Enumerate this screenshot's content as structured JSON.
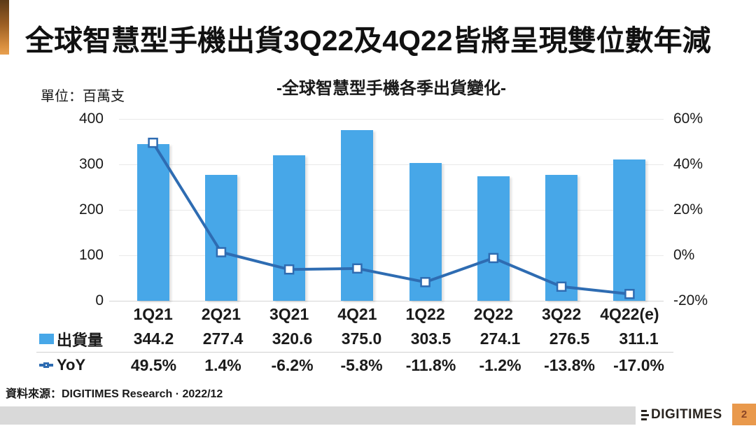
{
  "page": {
    "title": "全球智慧型手機出貨3Q22及4Q22皆將呈現雙位數年減",
    "source": "資料來源：DIGITIMES Research · 2022/12",
    "logo_text": "DIGITIMES",
    "page_number": "2"
  },
  "chart_data": {
    "type": "combo: bar (shipments, left axis) + line (YoY %, right axis)",
    "title": "-全球智慧型手機各季出貨變化-",
    "unit_label": "單位：百萬支",
    "categories": [
      "1Q21",
      "2Q21",
      "3Q21",
      "4Q21",
      "1Q22",
      "2Q22",
      "3Q22",
      "4Q22(e)"
    ],
    "series": [
      {
        "name": "出貨量",
        "chart": "bar",
        "axis": "left",
        "color": "#47A7E8",
        "values": [
          344.2,
          277.4,
          320.6,
          375.0,
          303.5,
          274.1,
          276.5,
          311.1
        ],
        "value_labels": [
          "344.2",
          "277.4",
          "320.6",
          "375.0",
          "303.5",
          "274.1",
          "276.5",
          "311.1"
        ]
      },
      {
        "name": "YoY",
        "chart": "line",
        "axis": "right",
        "color": "#2E6CB2",
        "marker": "open-square",
        "values": [
          49.5,
          1.4,
          -6.2,
          -5.8,
          -11.8,
          -1.2,
          -13.8,
          -17.0
        ],
        "value_labels": [
          "49.5%",
          "1.4%",
          "-6.2%",
          "-5.8%",
          "-11.8%",
          "-1.2%",
          "-13.8%",
          "-17.0%"
        ]
      }
    ],
    "left_axis": {
      "min": 0,
      "max": 400,
      "ticks": [
        "0",
        "100",
        "200",
        "300",
        "400"
      ]
    },
    "right_axis": {
      "min": -20,
      "max": 60,
      "ticks": [
        "-20%",
        "0%",
        "20%",
        "40%",
        "60%"
      ]
    },
    "grid": true,
    "legend_position": "table rows below x-axis"
  },
  "colors": {
    "bar_fill": "#47A7E8",
    "line_stroke": "#2E6CB2",
    "accent_bar_top": "#5C3A17",
    "accent_bar_bottom": "#E8A050",
    "footer_bar": "#D9D9D9",
    "page_badge_bg": "#E9994C",
    "page_badge_text": "#8A4526"
  }
}
